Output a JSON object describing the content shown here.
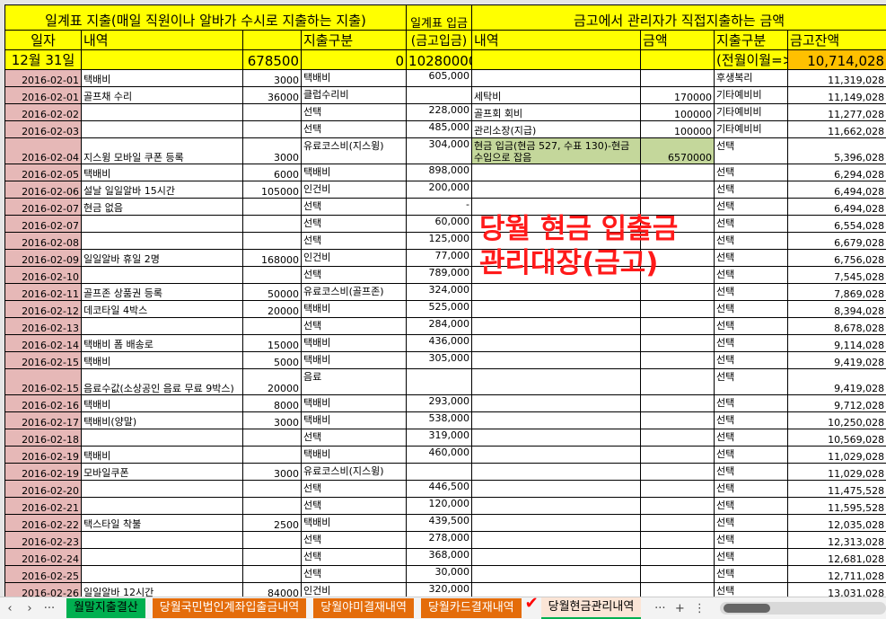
{
  "header": {
    "daily_expense_title": "일계표 지출(매일 직원이나 알바가 수시로 지출하는 지출)",
    "daily_deposit_title": "일계표 입금",
    "safe_expense_title": "금고에서 관리자가 직접지출하는 금액",
    "col_date": "일자",
    "col_desc": "내역",
    "col_category": "지출구분",
    "col_deposit": "(금고입금)",
    "col_safe_desc": "내역",
    "col_safe_amount": "금액",
    "col_safe_category": "지출구분",
    "col_balance": "금고잔액",
    "summary_date": "12월 31일",
    "summary_amount": "678500",
    "summary_category_total": "0",
    "summary_deposit": "10280000",
    "prev_month_label": "(전월이월=>",
    "prev_month_balance": "10,714,028"
  },
  "overlay_title": "당월 현금 입출금 관리대장(금고)",
  "rows": [
    {
      "date": "2016-02-01",
      "desc": "택배비",
      "amt": "3000",
      "cat": "택배비",
      "dep": "605,000",
      "fdesc": "",
      "famt": "",
      "fcat": "후생복리",
      "bal": "11,319,028"
    },
    {
      "date": "2016-02-01",
      "desc": "골프채 수리",
      "amt": "36000",
      "cat": "클럽수리비",
      "dep": "",
      "fdesc": "세탁비",
      "famt": "170000",
      "fcat": "기타예비비",
      "bal": "11,149,028"
    },
    {
      "date": "2016-02-02",
      "desc": "",
      "amt": "",
      "cat": "선택",
      "dep": "228,000",
      "fdesc": "골프회 회비",
      "famt": "100000",
      "fcat": "기타예비비",
      "bal": "11,277,028"
    },
    {
      "date": "2016-02-03",
      "desc": "",
      "amt": "",
      "cat": "선택",
      "dep": "485,000",
      "fdesc": "관리소장(지급)",
      "famt": "100000",
      "fcat": "기타예비비",
      "bal": "11,662,028"
    },
    {
      "date": "2016-02-04",
      "desc": "지스윙 모바일 쿠폰 등록",
      "amt": "3000",
      "cat": "유료코스비(지스윙)",
      "dep": "304,000",
      "fdesc": "현금 입금(현금 527, 수표 130)-현금 수입으로 잡음",
      "famt": "6570000",
      "fcat": "선택",
      "bal": "5,396,028",
      "tall": true,
      "highlight": true
    },
    {
      "date": "2016-02-05",
      "desc": "택배비",
      "amt": "6000",
      "cat": "택배비",
      "dep": "898,000",
      "fdesc": "",
      "famt": "",
      "fcat": "선택",
      "bal": "6,294,028"
    },
    {
      "date": "2016-02-06",
      "desc": "설날 일일알바 15시간",
      "amt": "105000",
      "cat": "인건비",
      "dep": "200,000",
      "fdesc": "",
      "famt": "",
      "fcat": "선택",
      "bal": "6,494,028"
    },
    {
      "date": "2016-02-07",
      "desc": "현금 없음",
      "amt": "",
      "cat": "선택",
      "dep": "-",
      "fdesc": "",
      "famt": "",
      "fcat": "선택",
      "bal": "6,494,028"
    },
    {
      "date": "2016-02-07",
      "desc": "",
      "amt": "",
      "cat": "선택",
      "dep": "60,000",
      "fdesc": "",
      "famt": "",
      "fcat": "선택",
      "bal": "6,554,028"
    },
    {
      "date": "2016-02-08",
      "desc": "",
      "amt": "",
      "cat": "선택",
      "dep": "125,000",
      "fdesc": "",
      "famt": "",
      "fcat": "선택",
      "bal": "6,679,028"
    },
    {
      "date": "2016-02-09",
      "desc": "일일알바 휴일 2명",
      "amt": "168000",
      "cat": "인건비",
      "dep": "77,000",
      "fdesc": "",
      "famt": "",
      "fcat": "선택",
      "bal": "6,756,028"
    },
    {
      "date": "2016-02-10",
      "desc": "",
      "amt": "",
      "cat": "선택",
      "dep": "789,000",
      "fdesc": "",
      "famt": "",
      "fcat": "선택",
      "bal": "7,545,028"
    },
    {
      "date": "2016-02-11",
      "desc": "골프존 상품권 등록",
      "amt": "50000",
      "cat": "유료코스비(골프존)",
      "dep": "324,000",
      "fdesc": "",
      "famt": "",
      "fcat": "선택",
      "bal": "7,869,028"
    },
    {
      "date": "2016-02-12",
      "desc": "데코타일 4박스",
      "amt": "20000",
      "cat": "택배비",
      "dep": "525,000",
      "fdesc": "",
      "famt": "",
      "fcat": "선택",
      "bal": "8,394,028"
    },
    {
      "date": "2016-02-13",
      "desc": "",
      "amt": "",
      "cat": "선택",
      "dep": "284,000",
      "fdesc": "",
      "famt": "",
      "fcat": "선택",
      "bal": "8,678,028"
    },
    {
      "date": "2016-02-14",
      "desc": "택배비 폼 배송로",
      "amt": "15000",
      "cat": "택배비",
      "dep": "436,000",
      "fdesc": "",
      "famt": "",
      "fcat": "선택",
      "bal": "9,114,028"
    },
    {
      "date": "2016-02-15",
      "desc": "택배비",
      "amt": "5000",
      "cat": "택배비",
      "dep": "305,000",
      "fdesc": "",
      "famt": "",
      "fcat": "선택",
      "bal": "9,419,028"
    },
    {
      "date": "2016-02-15",
      "desc": "음료수값(소상공인 음료 무료 9박스)",
      "amt": "20000",
      "cat": "음료",
      "dep": "",
      "fdesc": "",
      "famt": "",
      "fcat": "선택",
      "bal": "9,419,028",
      "tall": true
    },
    {
      "date": "2016-02-16",
      "desc": "택배비",
      "amt": "8000",
      "cat": "택배비",
      "dep": "293,000",
      "fdesc": "",
      "famt": "",
      "fcat": "선택",
      "bal": "9,712,028"
    },
    {
      "date": "2016-02-17",
      "desc": "택배비(양말)",
      "amt": "3000",
      "cat": "택배비",
      "dep": "538,000",
      "fdesc": "",
      "famt": "",
      "fcat": "선택",
      "bal": "10,250,028"
    },
    {
      "date": "2016-02-18",
      "desc": "",
      "amt": "",
      "cat": "선택",
      "dep": "319,000",
      "fdesc": "",
      "famt": "",
      "fcat": "선택",
      "bal": "10,569,028"
    },
    {
      "date": "2016-02-19",
      "desc": "택배비",
      "amt": "",
      "cat": "택배비",
      "dep": "460,000",
      "fdesc": "",
      "famt": "",
      "fcat": "선택",
      "bal": "11,029,028"
    },
    {
      "date": "2016-02-19",
      "desc": "모바일쿠폰",
      "amt": "3000",
      "cat": "유료코스비(지스윙)",
      "dep": "",
      "fdesc": "",
      "famt": "",
      "fcat": "선택",
      "bal": "11,029,028"
    },
    {
      "date": "2016-02-20",
      "desc": "",
      "amt": "",
      "cat": "선택",
      "dep": "446,500",
      "fdesc": "",
      "famt": "",
      "fcat": "선택",
      "bal": "11,475,528"
    },
    {
      "date": "2016-02-21",
      "desc": "",
      "amt": "",
      "cat": "선택",
      "dep": "120,000",
      "fdesc": "",
      "famt": "",
      "fcat": "선택",
      "bal": "11,595,528"
    },
    {
      "date": "2016-02-22",
      "desc": "택스타일 착불",
      "amt": "2500",
      "cat": "택배비",
      "dep": "439,500",
      "fdesc": "",
      "famt": "",
      "fcat": "선택",
      "bal": "12,035,028"
    },
    {
      "date": "2016-02-23",
      "desc": "",
      "amt": "",
      "cat": "선택",
      "dep": "278,000",
      "fdesc": "",
      "famt": "",
      "fcat": "선택",
      "bal": "12,313,028"
    },
    {
      "date": "2016-02-24",
      "desc": "",
      "amt": "",
      "cat": "선택",
      "dep": "368,000",
      "fdesc": "",
      "famt": "",
      "fcat": "선택",
      "bal": "12,681,028"
    },
    {
      "date": "2016-02-25",
      "desc": "",
      "amt": "",
      "cat": "선택",
      "dep": "30,000",
      "fdesc": "",
      "famt": "",
      "fcat": "선택",
      "bal": "12,711,028"
    },
    {
      "date": "2016-02-26",
      "desc": "일일알바 12시간",
      "amt": "84000",
      "cat": "인건비",
      "dep": "320,000",
      "fdesc": "",
      "famt": "",
      "fcat": "선택",
      "bal": "13,031,028"
    }
  ],
  "tabs": {
    "prev": "‹",
    "next": "›",
    "more_left": "···",
    "items": [
      {
        "label": "월말지출결산",
        "color": "#00b050"
      },
      {
        "label": "당월국민법인계좌입출금내역",
        "color": "#e46c0a"
      },
      {
        "label": "당월야미결재내역",
        "color": "#e46c0a"
      },
      {
        "label": "당월카드결재내역",
        "color": "#e46c0a"
      },
      {
        "label": "당월현금관리내역",
        "color": "#fbe5d6",
        "active": true
      }
    ],
    "more_right": "···",
    "add": "+",
    "options": "⋮",
    "check_mark": "✔"
  },
  "colors": {
    "header_yellow": "#ffff00",
    "date_pink": "#e6b8b7",
    "balance_orange": "#ffc000",
    "highlight_green": "#c4d79b",
    "overlay_red": "#ff1a1a"
  }
}
